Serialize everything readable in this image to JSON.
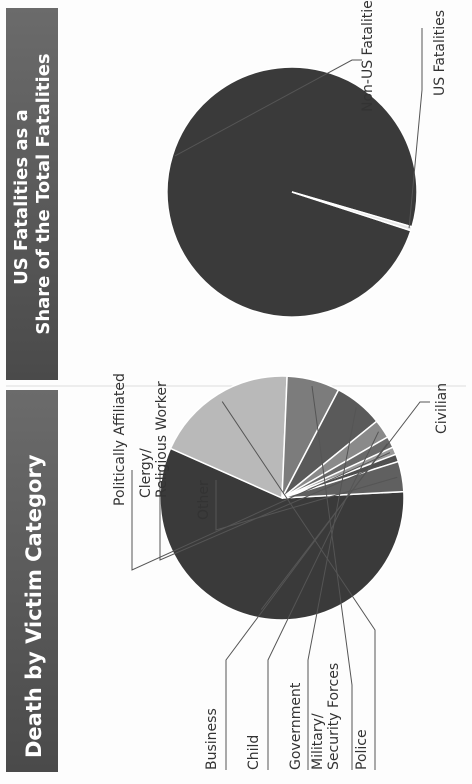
{
  "panels": [
    {
      "title": "Death by Victim Category",
      "chart_data": {
        "type": "pie",
        "categories": [
          "Civilian",
          "Police",
          "Military/ Security Forces",
          "Government",
          "Child",
          "Business",
          "Politically Affiliated",
          "Clergy/ Religious Worker",
          "Other"
        ],
        "values": [
          57.5,
          19,
          7,
          6.5,
          2.5,
          1.5,
          1,
          1,
          4
        ],
        "unit": "%",
        "legend": "callout labels around the pie",
        "colors": [
          "#3a3a3a",
          "#b9b9b9",
          "#7c7c7c",
          "#5a5a5a",
          "#8a8a8a",
          "#6a6a6a",
          "#999999",
          "#4e4e4e",
          "#606060"
        ]
      }
    },
    {
      "title": "US Fatalities as a Share of the Total Fatalities",
      "chart_data": {
        "type": "pie",
        "categories": [
          "Non-US Fatalities",
          "US Fatalities"
        ],
        "values": [
          99.5,
          0.5
        ],
        "unit": "%",
        "legend": "callout labels around the pie",
        "colors": [
          "#3a3a3a",
          "#e8e8e8"
        ]
      }
    }
  ]
}
